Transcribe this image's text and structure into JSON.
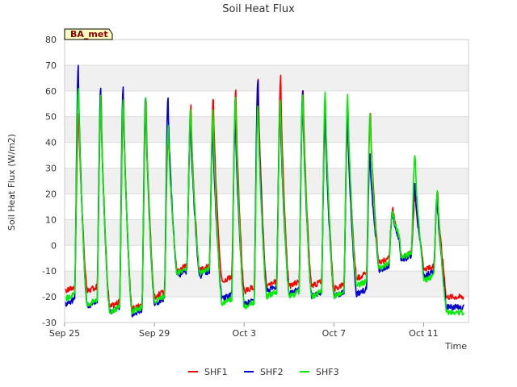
{
  "chart_data": {
    "type": "line",
    "title": "Soil Heat Flux",
    "xlabel": "Time",
    "ylabel": "Soil Heat Flux (W/m2)",
    "badge": "BA_met",
    "ylim": [
      -30,
      80
    ],
    "yticks": [
      -30,
      -20,
      -10,
      0,
      10,
      20,
      30,
      40,
      50,
      60,
      70,
      80
    ],
    "xlim": [
      0,
      18
    ],
    "xticks": [
      {
        "x": 0,
        "label": "Sep 25"
      },
      {
        "x": 4,
        "label": "Sep 29"
      },
      {
        "x": 8,
        "label": "Oct 3"
      },
      {
        "x": 12,
        "label": "Oct 7"
      },
      {
        "x": 16,
        "label": "Oct 11"
      }
    ],
    "grid": true,
    "legend": "bottom-center",
    "x_unit": "days since Sep 25",
    "series": [
      {
        "name": "SHF1",
        "color": "#ff0000",
        "x": [
          0.3,
          0.6,
          0.85,
          1.2,
          1.6,
          1.85,
          2.2,
          2.6,
          2.85,
          3.2,
          3.6,
          3.85,
          4.2,
          4.6,
          4.85,
          5.2,
          5.6,
          5.85,
          6.2,
          6.6,
          6.85,
          7.2,
          7.6,
          7.85,
          8.2,
          8.6,
          8.85,
          9.2,
          9.6,
          9.85,
          10.2,
          10.6,
          10.85,
          11.2,
          11.6,
          11.85,
          12.2,
          12.6,
          12.85,
          13.2,
          13.6,
          13.85,
          14.2,
          14.6,
          14.85,
          15.2,
          15.6,
          15.85,
          16.2,
          16.6,
          16.85,
          17.2
        ],
        "peaks": [
          52,
          57,
          57,
          56,
          45,
          54,
          57,
          60,
          64,
          65,
          61,
          53,
          53,
          51,
          14,
          20,
          20
        ],
        "troughs": [
          -18,
          -18,
          -24,
          -25,
          -20,
          -10,
          -10,
          -14,
          -18,
          -16,
          -16,
          -16,
          -17,
          -13,
          -7,
          -5,
          -10,
          -20
        ]
      },
      {
        "name": "SHF2",
        "color": "#0000cc",
        "peaks": [
          70,
          62,
          62,
          58,
          57,
          50,
          45,
          51,
          63,
          54,
          60,
          53,
          52,
          35,
          13,
          24,
          19
        ],
        "troughs": [
          -23,
          -24,
          -26,
          -27,
          -23,
          -12,
          -12,
          -21,
          -23,
          -18,
          -19,
          -20,
          -20,
          -19,
          -10,
          -6,
          -12,
          -24
        ]
      },
      {
        "name": "SHF3",
        "color": "#00ee00",
        "peaks": [
          62,
          58,
          58,
          57,
          46,
          54,
          52,
          58,
          55,
          57,
          60,
          60,
          59,
          51,
          14,
          36,
          22
        ],
        "troughs": [
          -21,
          -23,
          -26,
          -26,
          -22,
          -11,
          -11,
          -23,
          -24,
          -20,
          -20,
          -20,
          -20,
          -16,
          -9,
          -5,
          -14,
          -26
        ]
      }
    ]
  }
}
